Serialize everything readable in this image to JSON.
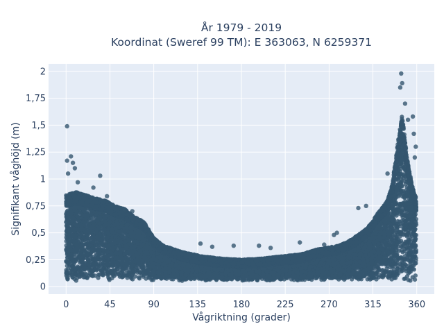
{
  "chart_data": {
    "type": "scatter",
    "title_lines": [
      "År 1979 - 2019",
      "Koordinat (Sweref 99 TM): E 363063, N 6259371"
    ],
    "xlabel": "Vågriktning (grader)",
    "ylabel": "Signifikant våghöjd (m)",
    "xlim": [
      -18,
      378
    ],
    "ylim": [
      -0.07,
      2.07
    ],
    "x_ticks": [
      0,
      45,
      90,
      135,
      180,
      225,
      270,
      315,
      360
    ],
    "x_tick_labels": [
      "0",
      "45",
      "90",
      "135",
      "180",
      "225",
      "270",
      "315",
      "360"
    ],
    "y_ticks": [
      0,
      0.25,
      0.5,
      0.75,
      1,
      1.25,
      1.5,
      1.75,
      2
    ],
    "y_tick_labels": [
      "0",
      "0,25",
      "0,5",
      "0,75",
      "1",
      "1,25",
      "1,5",
      "1,75",
      "2"
    ],
    "grid": true,
    "marker_color": "#34566f",
    "background_color": "#e5ecf6",
    "envelope": {
      "direction": [
        0,
        10,
        20,
        30,
        40,
        50,
        60,
        70,
        80,
        90,
        100,
        120,
        140,
        160,
        180,
        200,
        220,
        240,
        260,
        280,
        290,
        300,
        310,
        320,
        330,
        335,
        340,
        345,
        350,
        355,
        360
      ],
      "max_height": [
        0.85,
        0.88,
        0.85,
        0.82,
        0.8,
        0.75,
        0.72,
        0.65,
        0.6,
        0.45,
        0.38,
        0.32,
        0.28,
        0.26,
        0.25,
        0.26,
        0.28,
        0.3,
        0.35,
        0.38,
        0.42,
        0.48,
        0.55,
        0.68,
        0.8,
        0.95,
        1.3,
        1.6,
        1.2,
        0.95,
        0.8
      ]
    },
    "outliers": [
      {
        "x": 1,
        "y": 1.49
      },
      {
        "x": 1,
        "y": 1.17
      },
      {
        "x": 5,
        "y": 1.21
      },
      {
        "x": 7,
        "y": 1.15
      },
      {
        "x": 9,
        "y": 1.1
      },
      {
        "x": 2,
        "y": 1.05
      },
      {
        "x": 35,
        "y": 1.03
      },
      {
        "x": 12,
        "y": 0.97
      },
      {
        "x": 28,
        "y": 0.92
      },
      {
        "x": 42,
        "y": 0.84
      },
      {
        "x": 60,
        "y": 0.72
      },
      {
        "x": 68,
        "y": 0.7
      },
      {
        "x": 138,
        "y": 0.4
      },
      {
        "x": 150,
        "y": 0.37
      },
      {
        "x": 172,
        "y": 0.38
      },
      {
        "x": 198,
        "y": 0.38
      },
      {
        "x": 210,
        "y": 0.36
      },
      {
        "x": 240,
        "y": 0.41
      },
      {
        "x": 265,
        "y": 0.39
      },
      {
        "x": 275,
        "y": 0.48
      },
      {
        "x": 278,
        "y": 0.5
      },
      {
        "x": 300,
        "y": 0.73
      },
      {
        "x": 308,
        "y": 0.75
      },
      {
        "x": 330,
        "y": 1.05
      },
      {
        "x": 343,
        "y": 1.85
      },
      {
        "x": 344,
        "y": 1.98
      },
      {
        "x": 345,
        "y": 1.89
      },
      {
        "x": 348,
        "y": 1.7
      },
      {
        "x": 351,
        "y": 1.55
      },
      {
        "x": 356,
        "y": 1.58
      },
      {
        "x": 357,
        "y": 1.42
      },
      {
        "x": 359,
        "y": 1.3
      },
      {
        "x": 358,
        "y": 1.2
      }
    ]
  }
}
